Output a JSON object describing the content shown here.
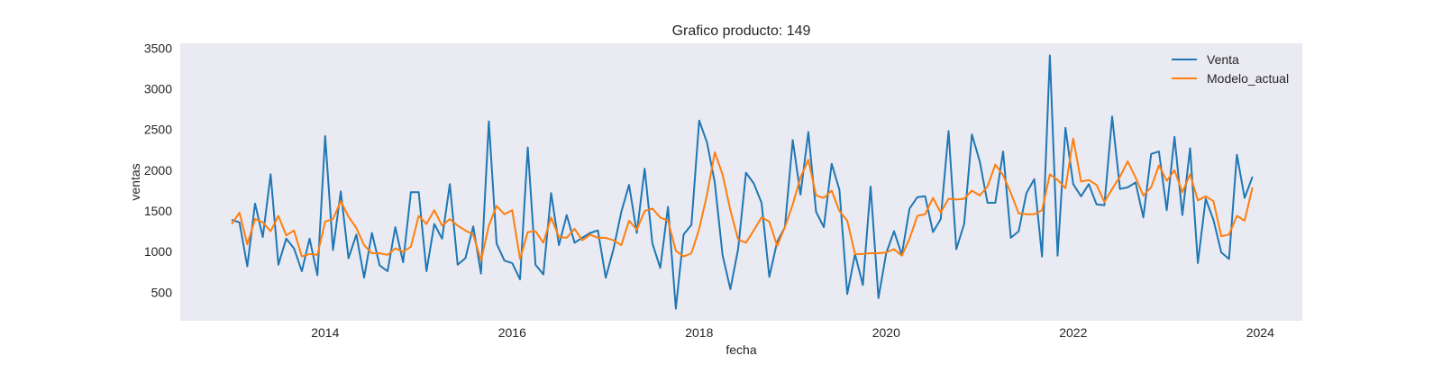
{
  "chart_data": {
    "type": "line",
    "title": "Grafico producto: 149",
    "xlabel": "fecha",
    "ylabel": "ventas",
    "x_start_date": "2013-01",
    "x_frequency": "monthly",
    "xticks": [
      2014,
      2016,
      2018,
      2020,
      2022,
      2024
    ],
    "yticks": [
      500,
      1000,
      1500,
      2000,
      2500,
      3000,
      3500
    ],
    "xlim": [
      2012.45,
      2024.45
    ],
    "ylim": [
      150,
      3560
    ],
    "grid": false,
    "legend_position": "top-right",
    "colors": {
      "plot_background": "#eaeaf2",
      "page_background": "#ffffff",
      "venta": "#1f77b4",
      "modelo_actual": "#ff7f0e"
    },
    "series": [
      {
        "name": "Venta",
        "color": "#1f77b4",
        "values": [
          1390,
          1360,
          820,
          1590,
          1180,
          1950,
          840,
          1160,
          1040,
          760,
          1160,
          710,
          2420,
          1020,
          1740,
          920,
          1210,
          680,
          1230,
          830,
          760,
          1300,
          870,
          1730,
          1730,
          760,
          1340,
          1160,
          1830,
          840,
          920,
          1310,
          730,
          2600,
          1100,
          890,
          860,
          660,
          2280,
          840,
          720,
          1720,
          1080,
          1450,
          1110,
          1170,
          1230,
          1260,
          680,
          1030,
          1490,
          1820,
          1230,
          2020,
          1100,
          800,
          1550,
          300,
          1210,
          1330,
          2610,
          2340,
          1850,
          960,
          540,
          1030,
          1970,
          1840,
          1600,
          690,
          1120,
          1300,
          2370,
          1700,
          2470,
          1490,
          1300,
          2080,
          1760,
          480,
          970,
          590,
          1800,
          430,
          980,
          1250,
          960,
          1530,
          1670,
          1680,
          1240,
          1400,
          2480,
          1030,
          1340,
          2440,
          2110,
          1600,
          1600,
          2230,
          1170,
          1250,
          1720,
          1890,
          940,
          3410,
          950,
          2520,
          1830,
          1680,
          1830,
          1580,
          1570,
          2660,
          1770,
          1790,
          1850,
          1420,
          2200,
          2230,
          1510,
          2410,
          1450,
          2270,
          860,
          1650,
          1390,
          990,
          910,
          2190,
          1660,
          1920
        ]
      },
      {
        "name": "Modelo_actual",
        "color": "#ff7f0e",
        "values": [
          1340,
          1480,
          1090,
          1400,
          1360,
          1250,
          1440,
          1200,
          1260,
          940,
          970,
          960,
          1370,
          1400,
          1620,
          1430,
          1290,
          1080,
          980,
          980,
          960,
          1040,
          1000,
          1060,
          1440,
          1340,
          1510,
          1320,
          1400,
          1320,
          1260,
          1210,
          890,
          1320,
          1560,
          1460,
          1510,
          910,
          1240,
          1250,
          1110,
          1420,
          1180,
          1170,
          1280,
          1140,
          1210,
          1170,
          1170,
          1140,
          1080,
          1380,
          1270,
          1500,
          1530,
          1420,
          1380,
          1010,
          940,
          980,
          1280,
          1700,
          2220,
          1950,
          1510,
          1150,
          1110,
          1260,
          1420,
          1370,
          1070,
          1300,
          1580,
          1910,
          2130,
          1690,
          1660,
          1750,
          1500,
          1380,
          970,
          970,
          980,
          980,
          990,
          1030,
          950,
          1160,
          1440,
          1460,
          1660,
          1480,
          1650,
          1640,
          1650,
          1750,
          1690,
          1800,
          2070,
          1940,
          1720,
          1470,
          1460,
          1460,
          1510,
          1950,
          1880,
          1780,
          2390,
          1860,
          1880,
          1820,
          1610,
          1770,
          1920,
          2110,
          1910,
          1690,
          1790,
          2060,
          1870,
          2000,
          1730,
          1950,
          1630,
          1680,
          1620,
          1190,
          1210,
          1440,
          1380,
          1790
        ]
      }
    ]
  }
}
